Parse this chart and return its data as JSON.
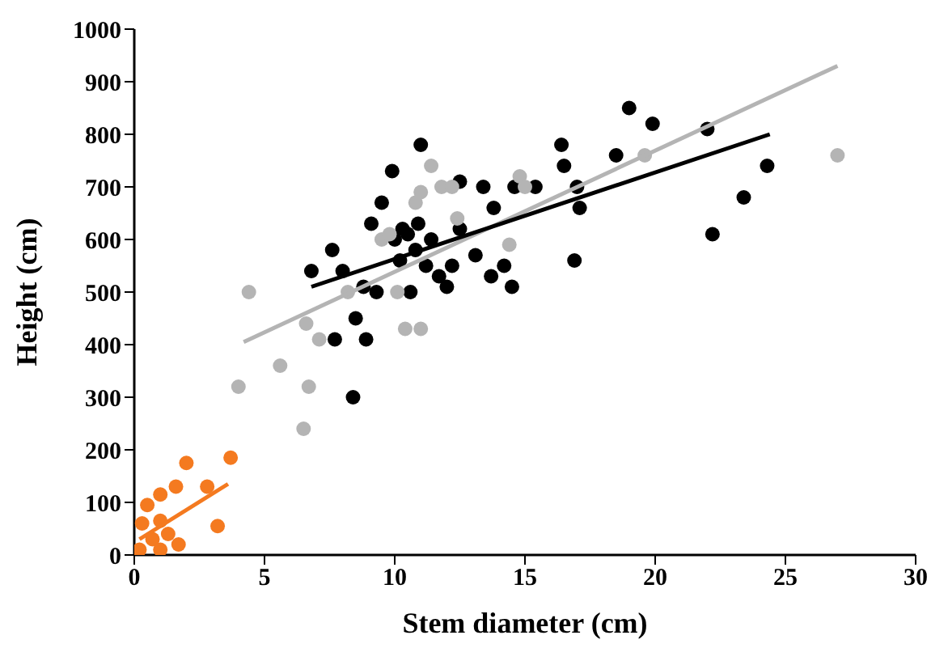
{
  "chart_data": {
    "type": "scatter",
    "xlabel": "Stem diameter (cm)",
    "ylabel": "Height (cm)",
    "xlim": [
      0,
      30
    ],
    "xticks": [
      0,
      5,
      10,
      15,
      20,
      25,
      30
    ],
    "ylim": [
      0,
      1000
    ],
    "yticks": [
      0,
      100,
      200,
      300,
      400,
      500,
      600,
      700,
      800,
      900,
      1000
    ],
    "grid": false,
    "series": [
      {
        "color": "#000000",
        "marker": "circle",
        "x": [
          6.8,
          7.6,
          7.7,
          8.0,
          8.5,
          8.4,
          8.8,
          8.9,
          9.1,
          9.3,
          9.5,
          9.9,
          10.0,
          10.2,
          10.5,
          10.6,
          10.8,
          10.9,
          11.0,
          11.2,
          11.7,
          12.0,
          12.2,
          12.5,
          12.5,
          13.1,
          13.4,
          13.7,
          13.8,
          14.2,
          14.5,
          14.6,
          15.4,
          16.4,
          16.5,
          16.9,
          17.0,
          17.1,
          18.5,
          19.0,
          19.9,
          22.0,
          22.2,
          23.4,
          24.3,
          10.3,
          11.4
        ],
        "values": [
          540,
          580,
          410,
          540,
          450,
          300,
          510,
          410,
          630,
          500,
          670,
          730,
          600,
          560,
          610,
          500,
          580,
          630,
          780,
          550,
          530,
          510,
          550,
          620,
          710,
          570,
          700,
          530,
          660,
          550,
          510,
          700,
          700,
          780,
          740,
          560,
          700,
          660,
          760,
          850,
          820,
          810,
          610,
          680,
          740,
          620,
          600
        ]
      },
      {
        "color": "#b4b4b4",
        "marker": "circle",
        "x": [
          4.0,
          4.4,
          5.6,
          6.5,
          6.6,
          6.7,
          7.1,
          8.2,
          9.5,
          10.1,
          10.4,
          10.8,
          11.0,
          11.4,
          11.8,
          12.4,
          9.8,
          14.4,
          14.8,
          15.0,
          19.6,
          27.0,
          11.0,
          12.2
        ],
        "values": [
          320,
          500,
          360,
          240,
          440,
          320,
          410,
          500,
          600,
          500,
          430,
          670,
          690,
          740,
          700,
          640,
          610,
          590,
          720,
          700,
          760,
          760,
          430,
          700
        ]
      },
      {
        "color": "#f47a20",
        "marker": "circle",
        "x": [
          3.7,
          2.0,
          1.6,
          2.8,
          3.2,
          1.0,
          0.5,
          0.3,
          1.0,
          0.7,
          1.3,
          0.2,
          1.0,
          1.7
        ],
        "values": [
          185,
          175,
          130,
          130,
          55,
          115,
          95,
          60,
          65,
          30,
          40,
          10,
          10,
          20
        ]
      },
      {
        "type": "line",
        "color": "#b4b4b4",
        "x": [
          4.2,
          27.0
        ],
        "values": [
          405,
          930
        ]
      },
      {
        "type": "line",
        "color": "#000000",
        "x": [
          6.8,
          24.4
        ],
        "values": [
          510,
          800
        ]
      },
      {
        "type": "line",
        "color": "#f47a20",
        "x": [
          0.2,
          3.6
        ],
        "values": [
          30,
          135
        ]
      }
    ]
  }
}
